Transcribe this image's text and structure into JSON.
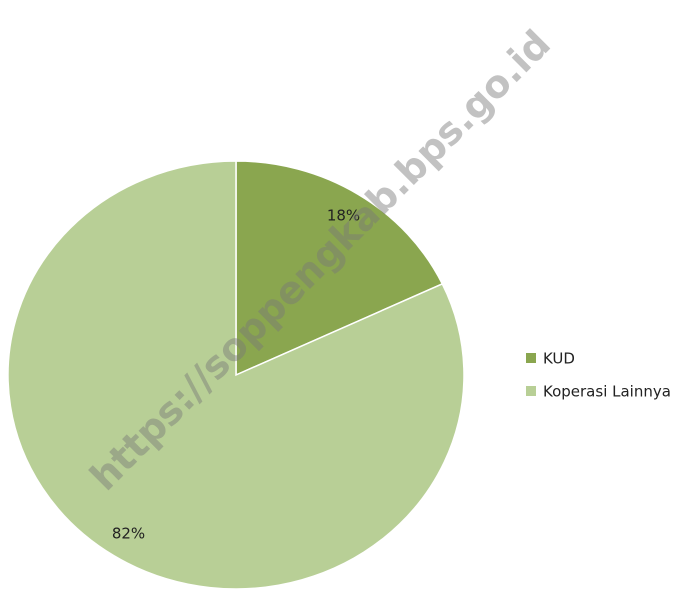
{
  "chart_data": {
    "type": "pie",
    "categories": [
      "KUD",
      "Koperasi Lainnya"
    ],
    "values": [
      18,
      82
    ],
    "value_labels": [
      "18%",
      "82%"
    ],
    "colors": [
      "#8aa64f",
      "#b8cf96"
    ],
    "legend": "right",
    "watermark": "https://soppengkab.bps.go.id"
  }
}
